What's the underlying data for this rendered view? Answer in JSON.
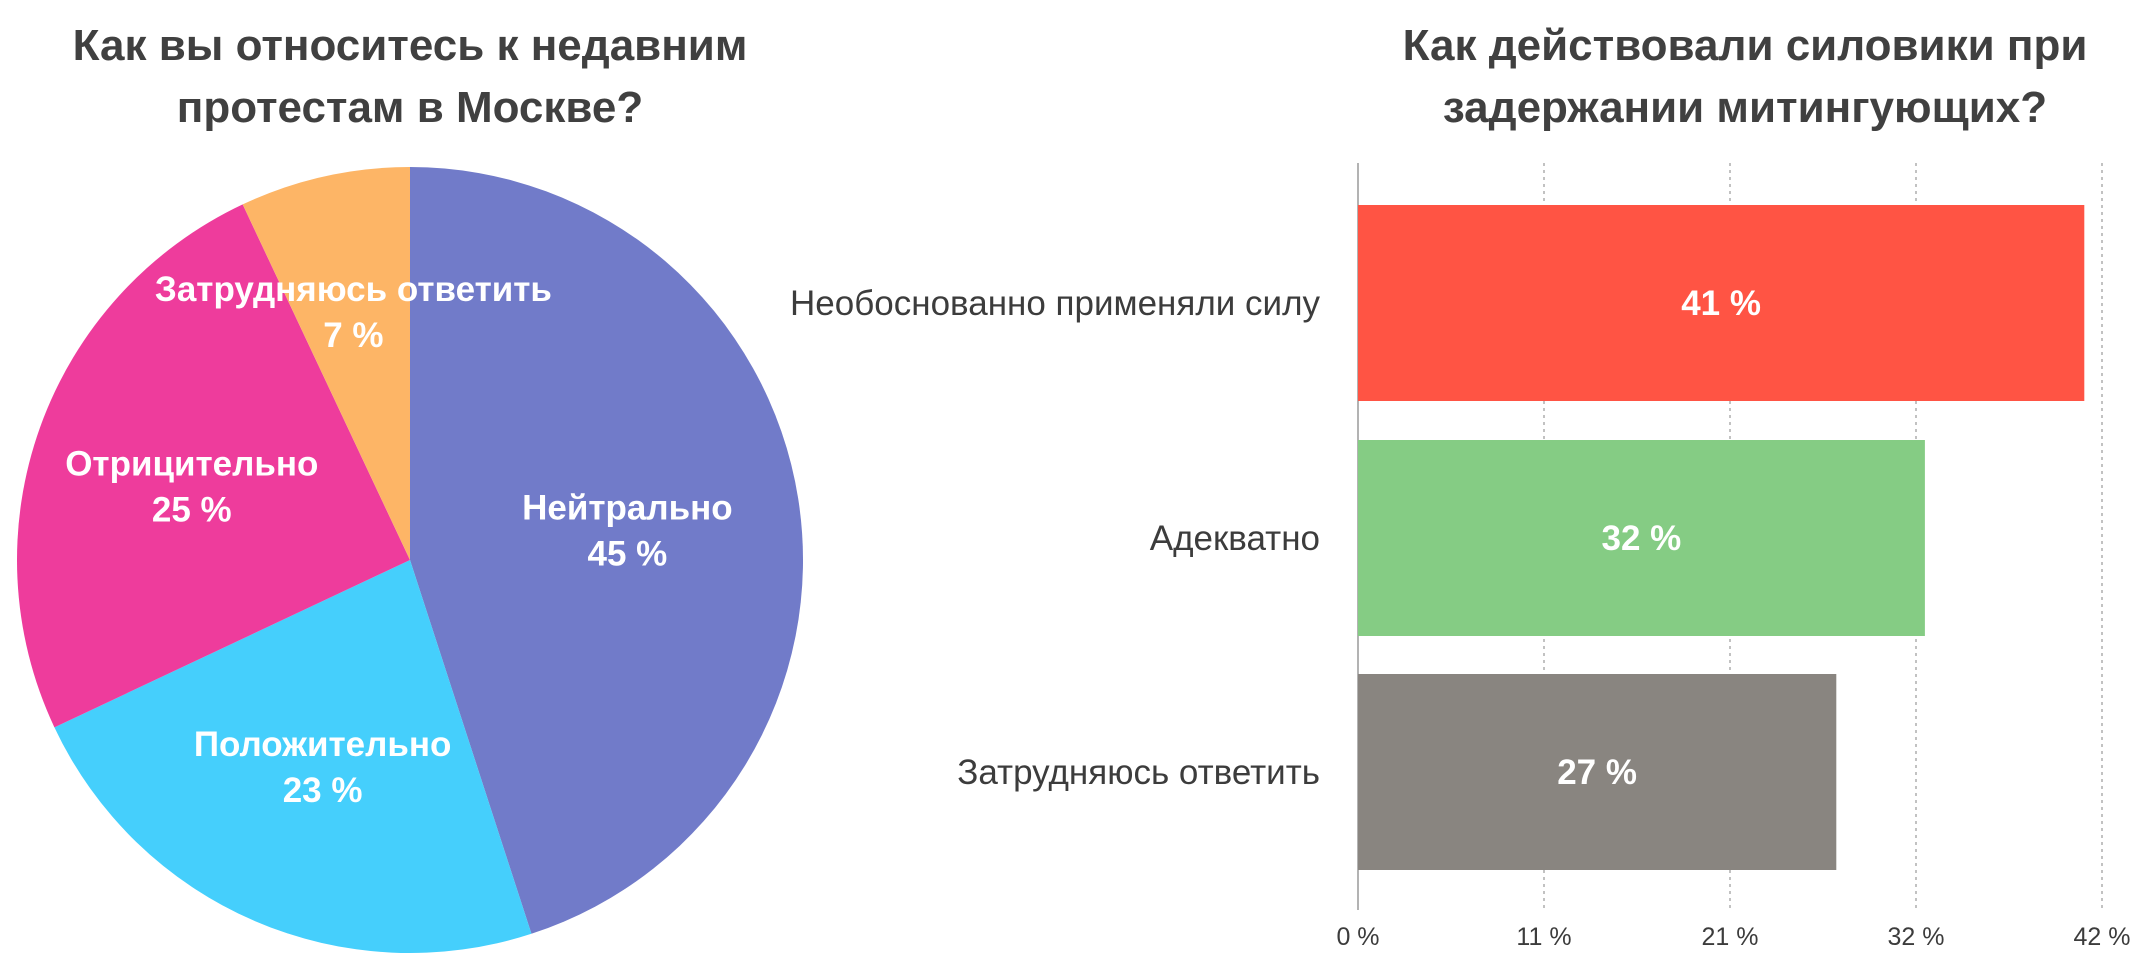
{
  "chart_data": [
    {
      "type": "pie",
      "title_lines": [
        "Как вы относитесь к недавним",
        "протестам в Москве?"
      ],
      "start_angle_deg": 0,
      "direction": "clockwise",
      "slices": [
        {
          "label": "Нейтрально",
          "value": 45,
          "value_label": "45 %",
          "color": "#717bc9"
        },
        {
          "label": "Положительно",
          "value": 23,
          "value_label": "23 %",
          "color": "#45cffc"
        },
        {
          "label": "Отрицительно",
          "value": 25,
          "value_label": "25 %",
          "color": "#ee3c9c"
        },
        {
          "label": "Затрудняюсь ответить",
          "value": 7,
          "value_label": "7 %",
          "color": "#fdb566"
        }
      ]
    },
    {
      "type": "bar",
      "orientation": "horizontal",
      "title_lines": [
        "Как действовали силовики при",
        "задержании митингующих?"
      ],
      "categories": [
        "Необоснованно применяли силу",
        "Адекватно",
        "Затрудняюсь ответить"
      ],
      "values": [
        41,
        32,
        27
      ],
      "value_labels": [
        "41 %",
        "32 %",
        "27 %"
      ],
      "colors": [
        "#ff5444",
        "#85cc84",
        "#898580"
      ],
      "xlim": [
        0,
        42
      ],
      "ticks": [
        0,
        10.5,
        21,
        31.5,
        42
      ],
      "tick_labels": [
        "0 %",
        "11 %",
        "21 %",
        "32 %",
        "42 %"
      ],
      "grid": true
    }
  ],
  "style": {
    "title_color": "#404040",
    "category_label_color": "#3c3c3c",
    "tick_label_color": "#3c3c3c",
    "grid_color": "#9a9a9a",
    "value_label_color": "#ffffff"
  }
}
